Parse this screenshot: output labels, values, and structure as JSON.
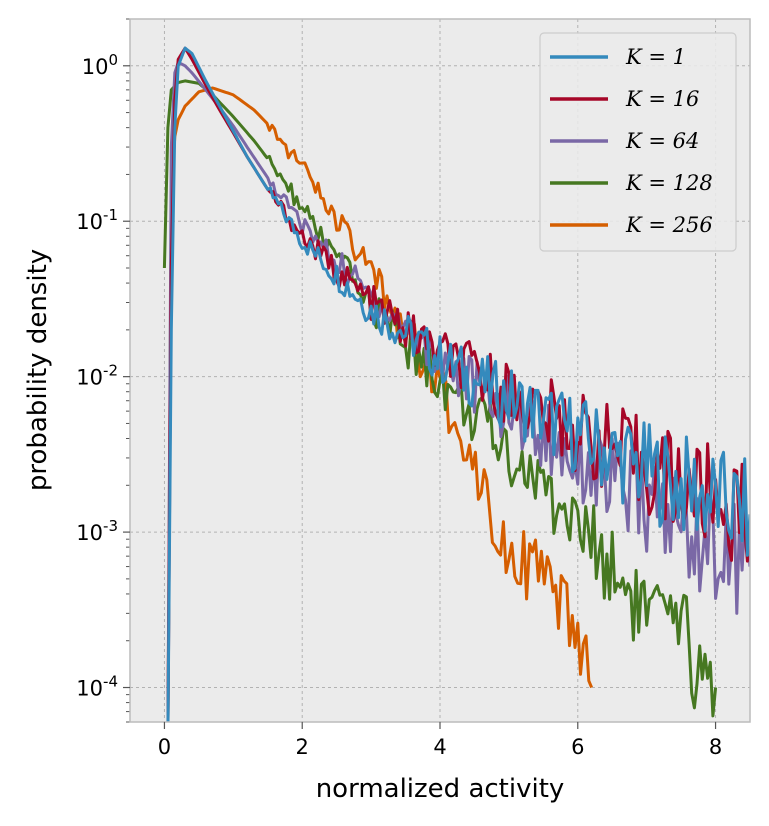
{
  "chart_data": {
    "type": "line",
    "title": "",
    "xlabel": "normalized activity",
    "ylabel": "probability density",
    "xlim": [
      -0.5,
      8.5
    ],
    "ylim": [
      6e-05,
      2.0
    ],
    "yscale": "log",
    "grid": true,
    "legend_position": "top-right",
    "x_ticks": [
      "0",
      "2",
      "4",
      "6",
      "8"
    ],
    "x_tick_values": [
      0,
      2,
      4,
      6,
      8
    ],
    "y_ticks": [
      {
        "base": "10",
        "exp": "0",
        "value": 1
      },
      {
        "base": "10",
        "exp": "-1",
        "value": 0.1
      },
      {
        "base": "10",
        "exp": "-2",
        "value": 0.01
      },
      {
        "base": "10",
        "exp": "-3",
        "value": 0.001
      },
      {
        "base": "10",
        "exp": "-4",
        "value": 0.0001
      }
    ],
    "series": [
      {
        "name": "K = 1",
        "legend_label": "K = 1",
        "color": "#348ABD",
        "x": [
          0.05,
          0.1,
          0.15,
          0.2,
          0.3,
          0.4,
          0.6,
          0.8,
          1.0,
          1.2,
          1.5,
          2.0,
          2.5,
          3.0,
          3.5,
          4.0,
          4.5,
          5.0,
          5.5,
          6.0,
          6.5,
          7.0,
          7.5,
          8.0,
          8.5
        ],
        "y": [
          5e-05,
          0.02,
          0.4,
          1.0,
          1.3,
          1.2,
          0.8,
          0.55,
          0.38,
          0.26,
          0.16,
          0.075,
          0.045,
          0.027,
          0.019,
          0.013,
          0.0095,
          0.0072,
          0.0055,
          0.0042,
          0.0032,
          0.0025,
          0.002,
          0.0016,
          0.0013
        ]
      },
      {
        "name": "K = 16",
        "legend_label": "K = 16",
        "color": "#A60628",
        "x": [
          0.05,
          0.1,
          0.15,
          0.2,
          0.3,
          0.4,
          0.6,
          0.8,
          1.0,
          1.2,
          1.5,
          2.0,
          2.5,
          3.0,
          3.5,
          4.0,
          4.5,
          5.0,
          5.5,
          6.0,
          6.5,
          7.0,
          7.5,
          8.0,
          8.5
        ],
        "y": [
          5e-05,
          0.05,
          0.6,
          1.1,
          1.3,
          1.1,
          0.75,
          0.52,
          0.37,
          0.26,
          0.16,
          0.08,
          0.048,
          0.03,
          0.02,
          0.014,
          0.0105,
          0.0078,
          0.0058,
          0.0044,
          0.0034,
          0.0026,
          0.002,
          0.0016,
          0.0012
        ]
      },
      {
        "name": "K = 64",
        "legend_label": "K = 64",
        "color": "#7A68A6",
        "x": [
          0.05,
          0.1,
          0.15,
          0.2,
          0.3,
          0.4,
          0.6,
          0.8,
          1.0,
          1.2,
          1.5,
          2.0,
          2.5,
          3.0,
          3.5,
          4.0,
          4.5,
          5.0,
          5.5,
          6.0,
          6.5,
          7.0,
          7.5,
          8.0,
          8.5
        ],
        "y": [
          5e-05,
          0.3,
          0.9,
          1.05,
          1.0,
          0.9,
          0.7,
          0.54,
          0.41,
          0.3,
          0.19,
          0.095,
          0.055,
          0.033,
          0.021,
          0.013,
          0.0088,
          0.006,
          0.0042,
          0.003,
          0.0021,
          0.0015,
          0.0011,
          0.0008,
          0.0006
        ]
      },
      {
        "name": "K = 128",
        "legend_label": "K = 128",
        "color": "#467821",
        "x": [
          0.0,
          0.05,
          0.1,
          0.2,
          0.3,
          0.5,
          0.7,
          1.0,
          1.3,
          1.6,
          2.0,
          2.5,
          3.0,
          3.5,
          4.0,
          4.5,
          5.0,
          5.5,
          6.0,
          6.5,
          7.0,
          7.5,
          8.0
        ],
        "y": [
          0.05,
          0.4,
          0.7,
          0.78,
          0.8,
          0.77,
          0.65,
          0.47,
          0.33,
          0.22,
          0.12,
          0.058,
          0.029,
          0.016,
          0.0095,
          0.0055,
          0.0033,
          0.0019,
          0.0011,
          0.0006,
          0.0003,
          0.0002,
          0.0001
        ]
      },
      {
        "name": "K = 256",
        "legend_label": "K = 256",
        "color": "#D55E00",
        "x": [
          0.05,
          0.1,
          0.15,
          0.2,
          0.3,
          0.5,
          0.7,
          1.0,
          1.3,
          1.6,
          2.0,
          2.5,
          3.0,
          3.5,
          3.8,
          4.0,
          4.3,
          4.6,
          4.8,
          5.0,
          5.3,
          5.6,
          6.0,
          6.2
        ],
        "y": [
          5e-05,
          0.15,
          0.35,
          0.45,
          0.55,
          0.68,
          0.72,
          0.65,
          0.52,
          0.38,
          0.22,
          0.1,
          0.045,
          0.02,
          0.012,
          0.008,
          0.0045,
          0.0022,
          0.0012,
          0.0008,
          0.0006,
          0.0004,
          0.0002,
          0.0001
        ]
      }
    ]
  }
}
